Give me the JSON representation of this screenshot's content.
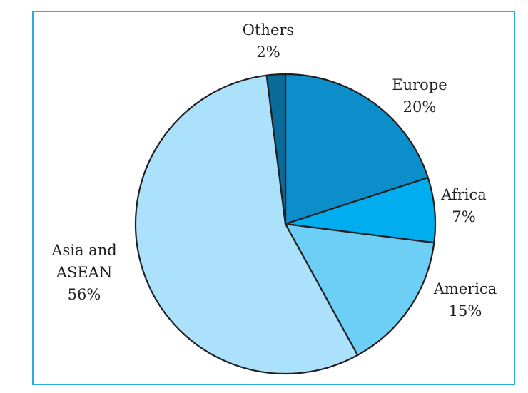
{
  "chart_data": {
    "type": "pie",
    "categories": [
      "Europe",
      "Africa",
      "America",
      "Asia and ASEAN",
      "Others"
    ],
    "values": [
      20,
      7,
      15,
      56,
      2
    ],
    "value_labels": [
      "20%",
      "7%",
      "15%",
      "56%",
      "2%"
    ],
    "colors": [
      "#0b8ec9",
      "#00aeef",
      "#6dcff6",
      "#abe1fa",
      "#0a6a9a"
    ]
  }
}
